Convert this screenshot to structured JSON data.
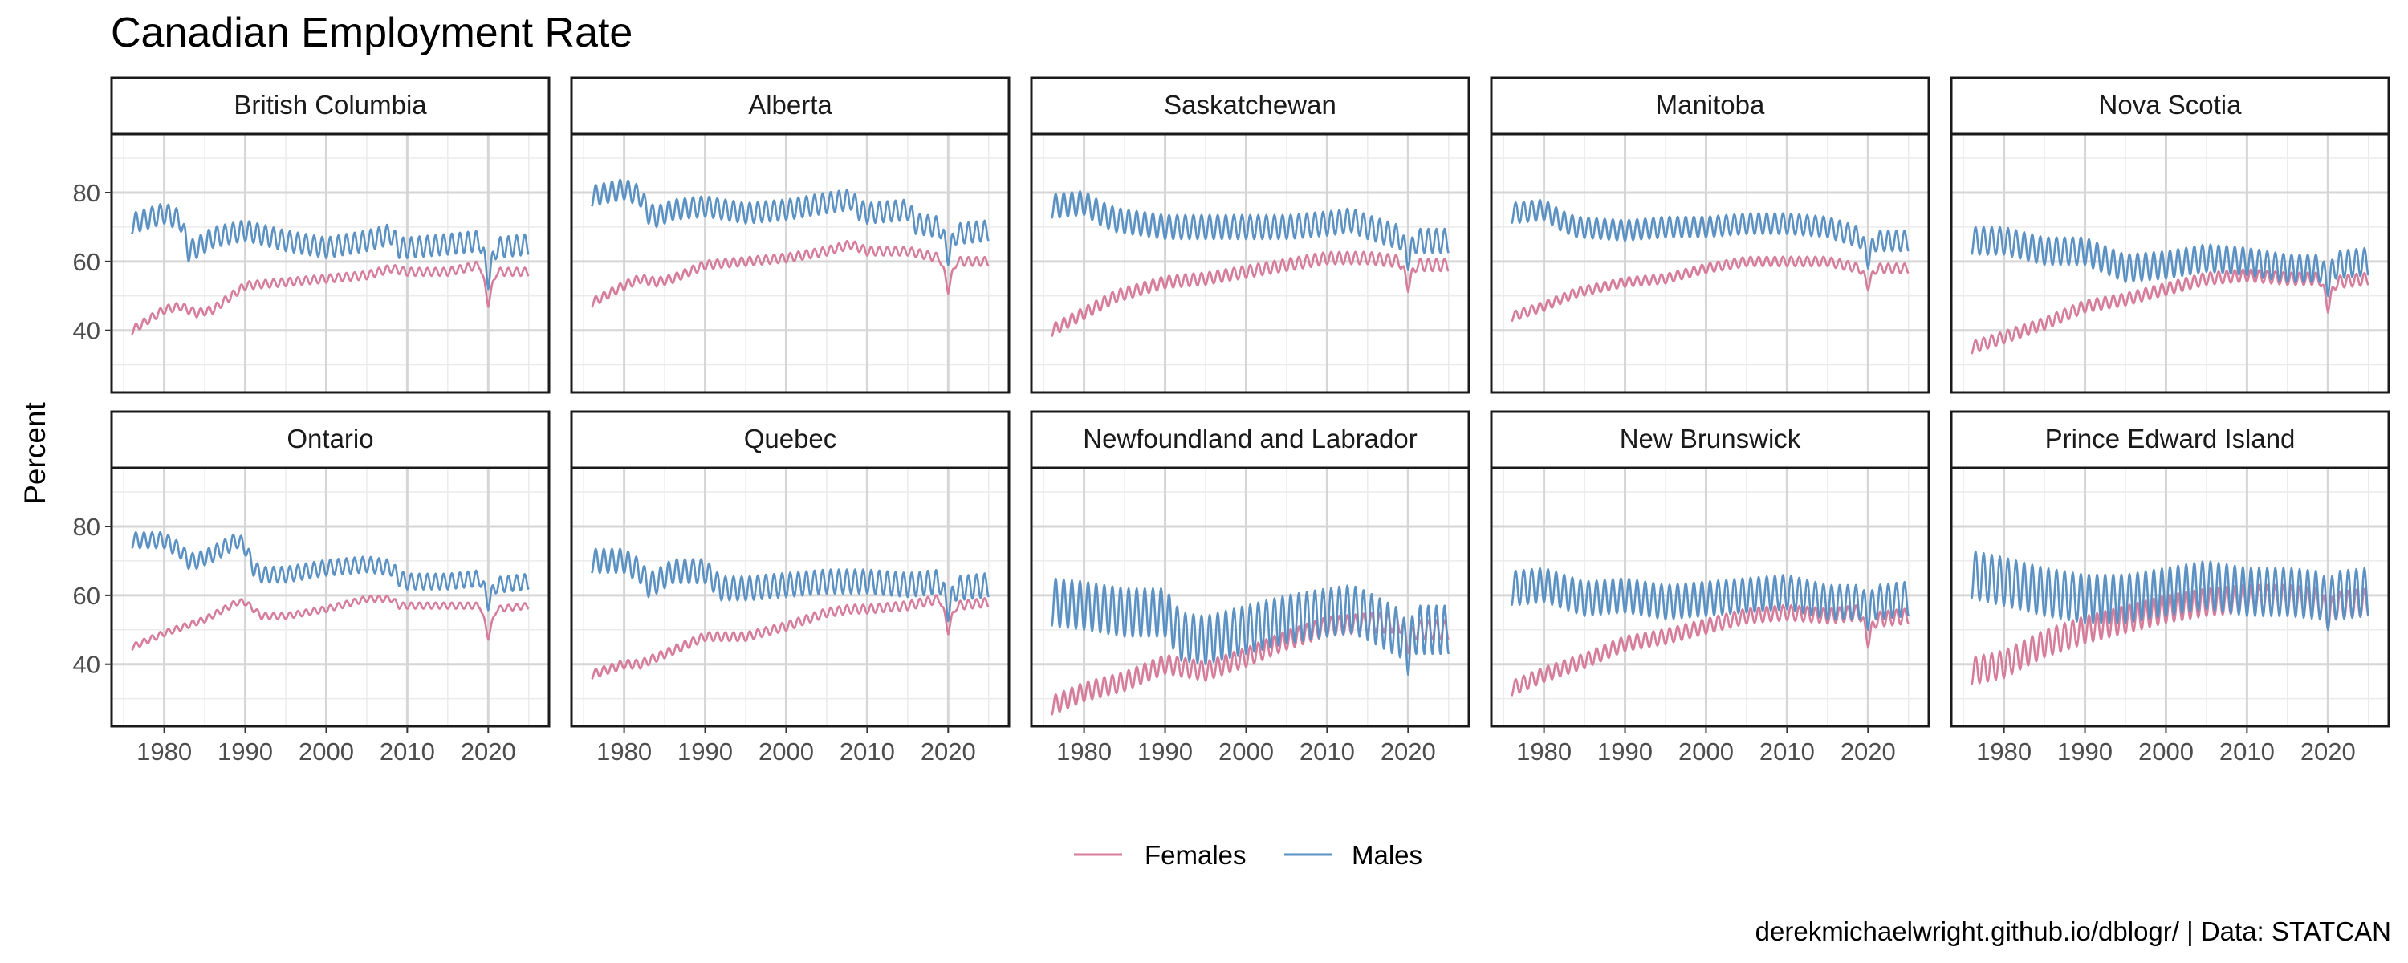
{
  "caption": "derekmichaelwright.github.io/dblogr/ | Data: STATCAN",
  "chart_data": {
    "type": "line",
    "title": "Canadian Employment Rate",
    "xlabel": "",
    "ylabel": "Percent",
    "x_range": [
      1976,
      2025
    ],
    "xlim": [
      1973.5,
      2027.5
    ],
    "ylim": [
      22,
      97
    ],
    "x_ticks": [
      1980,
      1990,
      2000,
      2010,
      2020
    ],
    "y_ticks": [
      40,
      60,
      80
    ],
    "grid": true,
    "legend_position": "bottom",
    "series_names": [
      "Females",
      "Males"
    ],
    "series_colors": {
      "Females": "#d67d9b",
      "Males": "#5b91c3"
    },
    "panels": [
      {
        "region": "British Columbia",
        "series": [
          {
            "name": "Females",
            "x": [
              1976,
              1980,
              1982,
              1984,
              1986,
              1990,
              1995,
              2000,
              2005,
              2008,
              2010,
              2015,
              2019,
              2020,
              2021,
              2025
            ],
            "y": [
              40,
              46,
              47,
              45,
              46,
              53,
              54,
              55,
              56,
              58,
              57,
              57,
              59,
              48,
              57,
              57
            ],
            "seasonal_amplitude": 1.2
          },
          {
            "name": "Males",
            "x": [
              1976,
              1980,
              1982,
              1983,
              1984,
              1986,
              1990,
              1995,
              2000,
              2005,
              2008,
              2009,
              2010,
              2015,
              2019,
              2020,
              2021,
              2025
            ],
            "y": [
              71,
              74,
              72,
              63,
              64,
              67,
              69,
              66,
              64,
              66,
              68,
              64,
              64,
              65,
              66,
              55,
              64,
              65
            ],
            "seasonal_amplitude": 3
          }
        ]
      },
      {
        "region": "Alberta",
        "series": [
          {
            "name": "Females",
            "x": [
              1976,
              1980,
              1982,
              1984,
              1986,
              1990,
              1995,
              2000,
              2005,
              2008,
              2010,
              2015,
              2019,
              2020,
              2021,
              2025
            ],
            "y": [
              48,
              53,
              55,
              54,
              55,
              59,
              60,
              61,
              63,
              65,
              63,
              63,
              61,
              52,
              60,
              60
            ],
            "seasonal_amplitude": 1.3
          },
          {
            "name": "Males",
            "x": [
              1976,
              1980,
              1982,
              1983,
              1984,
              1986,
              1990,
              1995,
              2000,
              2005,
              2008,
              2009,
              2010,
              2015,
              2016,
              2019,
              2020,
              2021,
              2025
            ],
            "y": [
              79,
              81,
              79,
              74,
              73,
              75,
              76,
              74,
              75,
              77,
              78,
              75,
              74,
              75,
              71,
              70,
              62,
              68,
              69
            ],
            "seasonal_amplitude": 3
          }
        ]
      },
      {
        "region": "Saskatchewan",
        "series": [
          {
            "name": "Females",
            "x": [
              1976,
              1980,
              1984,
              1990,
              1995,
              2000,
              2005,
              2010,
              2015,
              2019,
              2020,
              2021,
              2025
            ],
            "y": [
              40,
              45,
              50,
              54,
              55,
              57,
              59,
              61,
              61,
              60,
              53,
              59,
              59
            ],
            "seasonal_amplitude": 1.8
          },
          {
            "name": "Males",
            "x": [
              1976,
              1980,
              1982,
              1984,
              1990,
              1995,
              2000,
              2005,
              2010,
              2013,
              2015,
              2019,
              2020,
              2021,
              2025
            ],
            "y": [
              76,
              77,
              74,
              72,
              70,
              70,
              70,
              70,
              71,
              72,
              70,
              67,
              61,
              66,
              66
            ],
            "seasonal_amplitude": 3.5
          }
        ]
      },
      {
        "region": "Manitoba",
        "series": [
          {
            "name": "Females",
            "x": [
              1976,
              1980,
              1984,
              1990,
              1995,
              2000,
              2005,
              2010,
              2015,
              2019,
              2020,
              2021,
              2025
            ],
            "y": [
              44,
              47,
              51,
              54,
              55,
              58,
              60,
              60,
              60,
              58,
              53,
              58,
              58
            ],
            "seasonal_amplitude": 1.4
          },
          {
            "name": "Males",
            "x": [
              1976,
              1980,
              1982,
              1984,
              1990,
              1995,
              2000,
              2005,
              2010,
              2015,
              2019,
              2020,
              2021,
              2025
            ],
            "y": [
              74,
              75,
              72,
              70,
              69,
              70,
              70,
              71,
              71,
              70,
              67,
              61,
              66,
              66
            ],
            "seasonal_amplitude": 3
          }
        ]
      },
      {
        "region": "Nova Scotia",
        "series": [
          {
            "name": "Females",
            "x": [
              1976,
              1980,
              1985,
              1990,
              1995,
              2000,
              2005,
              2010,
              2015,
              2019,
              2020,
              2021,
              2025
            ],
            "y": [
              35,
              38,
              42,
              47,
              49,
              52,
              55,
              56,
              55,
              55,
              47,
              54,
              55
            ],
            "seasonal_amplitude": 1.8
          },
          {
            "name": "Males",
            "x": [
              1976,
              1980,
              1985,
              1990,
              1995,
              2000,
              2005,
              2010,
              2015,
              2019,
              2020,
              2021,
              2025
            ],
            "y": [
              66,
              66,
              63,
              63,
              58,
              59,
              61,
              60,
              58,
              58,
              54,
              59,
              60
            ],
            "seasonal_amplitude": 4
          }
        ]
      },
      {
        "region": "Ontario",
        "series": [
          {
            "name": "Females",
            "x": [
              1976,
              1980,
              1985,
              1989,
              1990,
              1992,
              1995,
              2000,
              2005,
              2008,
              2009,
              2010,
              2015,
              2019,
              2020,
              2021,
              2025
            ],
            "y": [
              45,
              49,
              53,
              58,
              58,
              54,
              54,
              56,
              59,
              59,
              57,
              57,
              57,
              57,
              48,
              56,
              57
            ],
            "seasonal_amplitude": 0.9
          },
          {
            "name": "Males",
            "x": [
              1976,
              1980,
              1982,
              1983,
              1984,
              1986,
              1989,
              1990,
              1991,
              1992,
              1995,
              2000,
              2005,
              2008,
              2009,
              2010,
              2015,
              2019,
              2020,
              2021,
              2025
            ],
            "y": [
              76,
              76,
              73,
              70,
              70,
              72,
              76,
              74,
              68,
              66,
              66,
              68,
              69,
              68,
              65,
              64,
              64,
              65,
              58,
              63,
              64
            ],
            "seasonal_amplitude": 2.3
          }
        ]
      },
      {
        "region": "Quebec",
        "series": [
          {
            "name": "Females",
            "x": [
              1976,
              1980,
              1982,
              1984,
              1986,
              1990,
              1995,
              2000,
              2005,
              2008,
              2010,
              2015,
              2019,
              2020,
              2021,
              2025
            ],
            "y": [
              37,
              40,
              40,
              42,
              44,
              48,
              48,
              51,
              55,
              56,
              56,
              57,
              59,
              50,
              57,
              58
            ],
            "seasonal_amplitude": 1.3
          },
          {
            "name": "Males",
            "x": [
              1976,
              1980,
              1982,
              1983,
              1984,
              1986,
              1990,
              1992,
              1995,
              2000,
              2005,
              2010,
              2015,
              2019,
              2020,
              2021,
              2025
            ],
            "y": [
              70,
              70,
              67,
              63,
              64,
              67,
              67,
              62,
              62,
              63,
              64,
              64,
              63,
              64,
              56,
              62,
              63
            ],
            "seasonal_amplitude": 3.5
          }
        ]
      },
      {
        "region": "Newfoundland and Labrador",
        "series": [
          {
            "name": "Females",
            "x": [
              1976,
              1980,
              1985,
              1990,
              1995,
              2000,
              2005,
              2010,
              2015,
              2019,
              2020,
              2021,
              2025
            ],
            "y": [
              28,
              32,
              35,
              40,
              38,
              42,
              47,
              51,
              52,
              52,
              46,
              50,
              50
            ],
            "seasonal_amplitude": 2.8
          },
          {
            "name": "Males",
            "x": [
              1976,
              1980,
              1985,
              1990,
              1992,
              1995,
              2000,
              2005,
              2010,
              2013,
              2015,
              2019,
              2020,
              2021,
              2025
            ],
            "y": [
              58,
              57,
              55,
              55,
              48,
              47,
              50,
              53,
              55,
              56,
              54,
              49,
              44,
              50,
              50
            ],
            "seasonal_amplitude": 7
          }
        ]
      },
      {
        "region": "New Brunswick",
        "series": [
          {
            "name": "Females",
            "x": [
              1976,
              1980,
              1985,
              1990,
              1995,
              2000,
              2005,
              2010,
              2015,
              2019,
              2020,
              2021,
              2025
            ],
            "y": [
              33,
              37,
              41,
              46,
              48,
              51,
              54,
              55,
              54,
              55,
              47,
              53,
              54
            ],
            "seasonal_amplitude": 2.2
          },
          {
            "name": "Males",
            "x": [
              1976,
              1980,
              1985,
              1990,
              1995,
              2000,
              2005,
              2010,
              2015,
              2019,
              2020,
              2021,
              2025
            ],
            "y": [
              62,
              63,
              59,
              60,
              58,
              59,
              60,
              61,
              58,
              58,
              55,
              58,
              59
            ],
            "seasonal_amplitude": 5
          }
        ]
      },
      {
        "region": "Prince Edward Island",
        "series": [
          {
            "name": "Females",
            "x": [
              1976,
              1980,
              1985,
              1990,
              1995,
              2000,
              2005,
              2010,
              2015,
              2019,
              2020,
              2021,
              2025
            ],
            "y": [
              38,
              40,
              46,
              50,
              53,
              56,
              58,
              59,
              59,
              58,
              54,
              57,
              58
            ],
            "seasonal_amplitude": 4
          },
          {
            "name": "Males",
            "x": [
              1976,
              1980,
              1985,
              1990,
              1995,
              2000,
              2005,
              2010,
              2015,
              2019,
              2020,
              2021,
              2025
            ],
            "y": [
              66,
              64,
              61,
              59,
              59,
              61,
              63,
              61,
              61,
              60,
              57,
              60,
              61
            ],
            "seasonal_amplitude": 7
          }
        ]
      }
    ]
  }
}
